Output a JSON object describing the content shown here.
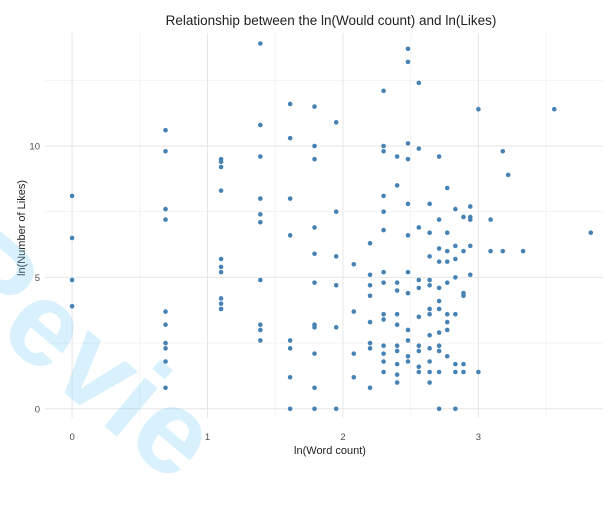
{
  "chart_data": {
    "type": "scatter",
    "title": "Relationship between the ln(Would count) and ln(Likes)",
    "xlabel": "ln(Word count)",
    "ylabel": "ln(Number of Likes)",
    "xlim": [
      -0.2,
      3.92
    ],
    "ylim": [
      -0.35,
      14.3
    ],
    "x_ticks": [
      0,
      1,
      2,
      3
    ],
    "y_ticks": [
      0,
      5,
      10
    ],
    "grid": true,
    "point_color": "#4682b4",
    "points": [
      [
        0,
        8.1
      ],
      [
        0,
        6.5
      ],
      [
        0,
        4.9
      ],
      [
        0,
        3.9
      ],
      [
        0.69,
        10.6
      ],
      [
        0.69,
        9.8
      ],
      [
        0.69,
        7.6
      ],
      [
        0.69,
        7.2
      ],
      [
        0.69,
        3.7
      ],
      [
        0.69,
        3.2
      ],
      [
        0.69,
        2.5
      ],
      [
        0.69,
        2.3
      ],
      [
        0.69,
        1.8
      ],
      [
        0.69,
        0.8
      ],
      [
        1.1,
        9.5
      ],
      [
        1.1,
        9.4
      ],
      [
        1.1,
        9.2
      ],
      [
        1.1,
        8.3
      ],
      [
        1.1,
        5.7
      ],
      [
        1.1,
        5.4
      ],
      [
        1.1,
        5.2
      ],
      [
        1.1,
        4.2
      ],
      [
        1.1,
        4.0
      ],
      [
        1.1,
        3.8
      ],
      [
        1.39,
        13.9
      ],
      [
        1.39,
        10.8
      ],
      [
        1.39,
        9.6
      ],
      [
        1.39,
        8.0
      ],
      [
        1.39,
        7.4
      ],
      [
        1.39,
        7.1
      ],
      [
        1.39,
        4.9
      ],
      [
        1.39,
        3.2
      ],
      [
        1.39,
        3.0
      ],
      [
        1.39,
        2.6
      ],
      [
        1.61,
        11.6
      ],
      [
        1.61,
        10.3
      ],
      [
        1.61,
        8.0
      ],
      [
        1.61,
        6.6
      ],
      [
        1.61,
        2.6
      ],
      [
        1.61,
        2.3
      ],
      [
        1.61,
        1.2
      ],
      [
        1.61,
        0
      ],
      [
        1.79,
        11.5
      ],
      [
        1.79,
        10.0
      ],
      [
        1.79,
        9.5
      ],
      [
        1.79,
        6.9
      ],
      [
        1.79,
        5.9
      ],
      [
        1.79,
        4.8
      ],
      [
        1.79,
        3.2
      ],
      [
        1.79,
        3.1
      ],
      [
        1.79,
        2.1
      ],
      [
        1.79,
        0.8
      ],
      [
        1.79,
        0
      ],
      [
        1.95,
        10.9
      ],
      [
        1.95,
        7.5
      ],
      [
        1.95,
        5.8
      ],
      [
        1.95,
        4.7
      ],
      [
        1.95,
        3.1
      ],
      [
        1.95,
        0
      ],
      [
        2.08,
        5.5
      ],
      [
        2.08,
        3.7
      ],
      [
        2.08,
        2.1
      ],
      [
        2.08,
        1.2
      ],
      [
        2.2,
        6.3
      ],
      [
        2.2,
        5.1
      ],
      [
        2.2,
        4.7
      ],
      [
        2.2,
        4.3
      ],
      [
        2.2,
        3.3
      ],
      [
        2.2,
        2.5
      ],
      [
        2.2,
        2.3
      ],
      [
        2.2,
        0.8
      ],
      [
        2.3,
        12.1
      ],
      [
        2.3,
        10.0
      ],
      [
        2.3,
        9.8
      ],
      [
        2.3,
        8.1
      ],
      [
        2.3,
        7.5
      ],
      [
        2.3,
        6.8
      ],
      [
        2.3,
        5.2
      ],
      [
        2.3,
        4.8
      ],
      [
        2.3,
        3.6
      ],
      [
        2.3,
        3.4
      ],
      [
        2.3,
        2.4
      ],
      [
        2.3,
        2.1
      ],
      [
        2.3,
        1.8
      ],
      [
        2.3,
        1.4
      ],
      [
        2.4,
        9.6
      ],
      [
        2.4,
        8.5
      ],
      [
        2.4,
        4.8
      ],
      [
        2.4,
        4.5
      ],
      [
        2.4,
        3.6
      ],
      [
        2.4,
        3.2
      ],
      [
        2.4,
        2.4
      ],
      [
        2.4,
        2.2
      ],
      [
        2.4,
        1.7
      ],
      [
        2.4,
        1.3
      ],
      [
        2.4,
        1.0
      ],
      [
        2.48,
        13.7
      ],
      [
        2.48,
        13.2
      ],
      [
        2.48,
        10.1
      ],
      [
        2.48,
        9.5
      ],
      [
        2.48,
        7.8
      ],
      [
        2.48,
        6.6
      ],
      [
        2.48,
        5.2
      ],
      [
        2.48,
        4.4
      ],
      [
        2.48,
        3.0
      ],
      [
        2.48,
        2.6
      ],
      [
        2.48,
        2.0
      ],
      [
        2.48,
        1.8
      ],
      [
        2.56,
        12.4
      ],
      [
        2.56,
        9.9
      ],
      [
        2.56,
        6.9
      ],
      [
        2.56,
        4.9
      ],
      [
        2.56,
        4.6
      ],
      [
        2.56,
        3.5
      ],
      [
        2.56,
        2.4
      ],
      [
        2.56,
        2.2
      ],
      [
        2.56,
        1.6
      ],
      [
        2.56,
        1.4
      ],
      [
        2.64,
        7.8
      ],
      [
        2.64,
        6.7
      ],
      [
        2.64,
        5.8
      ],
      [
        2.64,
        4.9
      ],
      [
        2.64,
        4.7
      ],
      [
        2.64,
        3.8
      ],
      [
        2.64,
        3.6
      ],
      [
        2.64,
        2.8
      ],
      [
        2.64,
        2.3
      ],
      [
        2.64,
        1.8
      ],
      [
        2.64,
        1.4
      ],
      [
        2.64,
        1.0
      ],
      [
        2.71,
        9.6
      ],
      [
        2.71,
        7.2
      ],
      [
        2.71,
        6.1
      ],
      [
        2.71,
        5.6
      ],
      [
        2.71,
        4.6
      ],
      [
        2.71,
        4.1
      ],
      [
        2.71,
        3.8
      ],
      [
        2.71,
        2.9
      ],
      [
        2.71,
        2.4
      ],
      [
        2.71,
        2.2
      ],
      [
        2.71,
        1.4
      ],
      [
        2.71,
        0
      ],
      [
        2.77,
        8.4
      ],
      [
        2.77,
        6.7
      ],
      [
        2.77,
        6.0
      ],
      [
        2.77,
        5.6
      ],
      [
        2.77,
        4.8
      ],
      [
        2.77,
        3.6
      ],
      [
        2.77,
        3.3
      ],
      [
        2.77,
        3.0
      ],
      [
        2.77,
        2.0
      ],
      [
        2.83,
        7.6
      ],
      [
        2.83,
        6.2
      ],
      [
        2.83,
        5.7
      ],
      [
        2.83,
        5.0
      ],
      [
        2.83,
        3.6
      ],
      [
        2.83,
        1.7
      ],
      [
        2.83,
        1.4
      ],
      [
        2.83,
        0
      ],
      [
        2.89,
        7.3
      ],
      [
        2.89,
        6.0
      ],
      [
        2.89,
        4.4
      ],
      [
        2.89,
        4.3
      ],
      [
        2.89,
        1.7
      ],
      [
        2.89,
        1.4
      ],
      [
        2.94,
        7.7
      ],
      [
        2.94,
        7.3
      ],
      [
        2.94,
        7.2
      ],
      [
        2.94,
        6.2
      ],
      [
        2.94,
        5.1
      ],
      [
        3.0,
        11.4
      ],
      [
        3.0,
        1.4
      ],
      [
        3.09,
        7.2
      ],
      [
        3.09,
        6.0
      ],
      [
        3.18,
        9.8
      ],
      [
        3.18,
        6.0
      ],
      [
        3.22,
        8.9
      ],
      [
        3.33,
        6.0
      ],
      [
        3.56,
        11.4
      ],
      [
        3.83,
        6.7
      ]
    ]
  }
}
